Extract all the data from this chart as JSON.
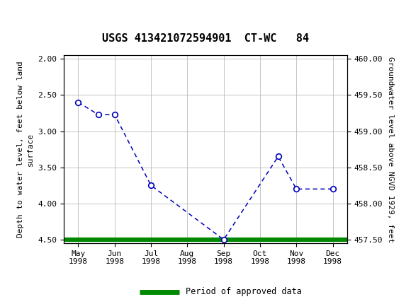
{
  "title": "USGS 413421072594901  CT-WC   84",
  "ylabel_left": "Depth to water level, feet below land\nsurface",
  "ylabel_right": "Groundwater level above NGVD 1929, feet",
  "xlabels": [
    "May\n1998",
    "Jun\n1998",
    "Jul\n1998",
    "Aug\n1998",
    "Sep\n1998",
    "Oct\n1998",
    "Nov\n1998",
    "Dec\n1998"
  ],
  "x_positions": [
    0,
    1,
    2,
    3,
    4,
    5,
    6,
    7
  ],
  "data_points": {
    "x": [
      0.0,
      0.55,
      1.0,
      2.0,
      4.0,
      5.5,
      6.0,
      7.0
    ],
    "y": [
      2.6,
      2.77,
      2.77,
      3.75,
      4.5,
      3.35,
      3.8,
      3.8
    ]
  },
  "circle_points": {
    "x": [
      0.0,
      1.0,
      2.0,
      4.0,
      5.5,
      6.0,
      7.0
    ],
    "y": [
      2.6,
      2.77,
      3.75,
      4.5,
      3.35,
      3.8,
      3.8
    ]
  },
  "ylim_left": [
    4.55,
    1.95
  ],
  "ylim_right": [
    457.7,
    460.3
  ],
  "yticks_left": [
    2.0,
    2.5,
    3.0,
    3.5,
    4.0,
    4.5
  ],
  "yticks_right_vals": [
    460.0,
    459.5,
    459.0,
    458.5,
    458.0
  ],
  "yticks_right_labels": [
    "460.00",
    "459.50",
    "459.00",
    "458.50",
    "458.00"
  ],
  "line_color": "#0000BB",
  "marker_facecolor": "#ffffff",
  "marker_edgecolor": "#0000BB",
  "green_line_y": 4.5,
  "green_color": "#008800",
  "background_color": "#ffffff",
  "header_bg_color": "#1a6b3c",
  "grid_color": "#bbbbbb",
  "legend_label": "Period of approved data",
  "title_fontsize": 11,
  "axis_fontsize": 8
}
